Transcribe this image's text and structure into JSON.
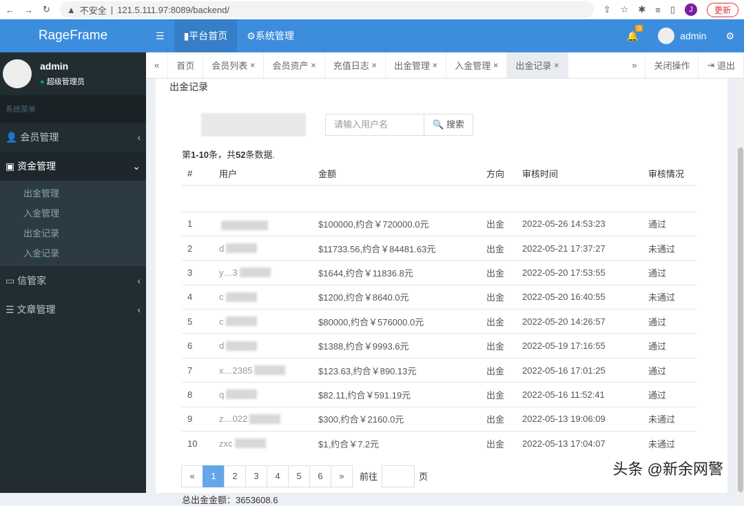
{
  "browser": {
    "security": "不安全",
    "url": "121.5.111.97:8089/backend/",
    "profile": "J",
    "update": "更新"
  },
  "header": {
    "logo": "RageFrame",
    "nav": [
      "平台首页",
      "系统管理"
    ],
    "notif_count": "0",
    "user": "admin"
  },
  "sidebar": {
    "user": "admin",
    "role": "超级管理员",
    "section": "系统菜单",
    "items": [
      {
        "label": "会员管理"
      },
      {
        "label": "资金管理",
        "children": [
          "出金管理",
          "入金管理",
          "出金记录",
          "入金记录"
        ]
      },
      {
        "label": "信管家"
      },
      {
        "label": "文章管理"
      }
    ]
  },
  "tabs": {
    "prev": "«",
    "next": "»",
    "items": [
      "首页",
      "会员列表",
      "会员资产",
      "充值日志",
      "出金管理",
      "入金管理",
      "出金记录"
    ],
    "close_ops": "关闭操作",
    "logout": "退出"
  },
  "page": {
    "title": "出金记录",
    "search_placeholder": "请输入用户名",
    "search_btn": "搜索",
    "summary_pre": "第",
    "summary_range": "1-10",
    "summary_mid": "条，共",
    "summary_count": "52",
    "summary_post": "条数据.",
    "columns": [
      "#",
      "用户",
      "金额",
      "方向",
      "审核时间",
      "审核情况"
    ],
    "rows": [
      [
        "1",
        "",
        "$100000,约合￥720000.0元",
        "出金",
        "2022-05-26 14:53:23",
        "通过"
      ],
      [
        "2",
        "d",
        "$11733.56,约合￥84481.63元",
        "出金",
        "2022-05-21 17:37:27",
        "未通过"
      ],
      [
        "3",
        "y…3",
        "$1644,约合￥11836.8元",
        "出金",
        "2022-05-20 17:53:55",
        "通过"
      ],
      [
        "4",
        "c",
        "$1200,约合￥8640.0元",
        "出金",
        "2022-05-20 16:40:55",
        "未通过"
      ],
      [
        "5",
        "c",
        "$80000,约合￥576000.0元",
        "出金",
        "2022-05-20 14:26:57",
        "通过"
      ],
      [
        "6",
        "d",
        "$1388,约合￥9993.6元",
        "出金",
        "2022-05-19 17:16:55",
        "通过"
      ],
      [
        "7",
        "x…2385",
        "$123.63,约合￥890.13元",
        "出金",
        "2022-05-16 17:01:25",
        "通过"
      ],
      [
        "8",
        "q",
        "$82.11,约合￥591.19元",
        "出金",
        "2022-05-16 11:52:41",
        "通过"
      ],
      [
        "9",
        "z…022",
        "$300,约合￥2160.0元",
        "出金",
        "2022-05-13 19:06:09",
        "未通过"
      ],
      [
        "10",
        "zxc",
        "$1,约合￥7.2元",
        "出金",
        "2022-05-13 17:04:07",
        "未通过"
      ]
    ],
    "pager": {
      "prev": "«",
      "pages": [
        "1",
        "2",
        "3",
        "4",
        "5",
        "6"
      ],
      "current": "1",
      "next": "»",
      "goto": "前往",
      "page_unit": "页"
    },
    "total_label": "总出金金额：",
    "total_value": "3653608.6"
  },
  "watermark": "头条 @新余网警"
}
